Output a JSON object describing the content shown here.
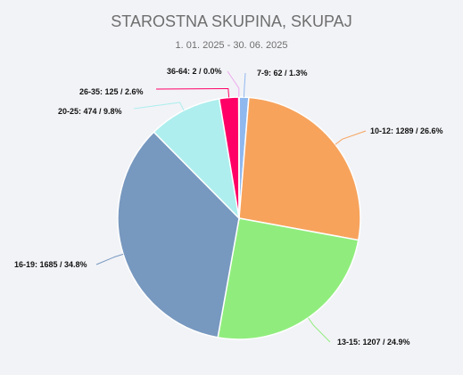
{
  "chart_data": {
    "type": "pie",
    "title": "STAROSTNA SKUPINA, SKUPAJ",
    "subtitle": "1. 01. 2025 - 30. 06. 2025",
    "slices": [
      {
        "label": "7-9",
        "value": 62,
        "percent": "1.3%",
        "text": "7-9: 62 / 1.3%",
        "color": "#8fb8ee"
      },
      {
        "label": "10-12",
        "value": 1289,
        "percent": "26.6%",
        "text": "10-12: 1289 / 26.6%",
        "color": "#f7a35c"
      },
      {
        "label": "13-15",
        "value": 1207,
        "percent": "24.9%",
        "text": "13-15: 1207 / 24.9%",
        "color": "#90ed7d"
      },
      {
        "label": "16-19",
        "value": 1685,
        "percent": "34.8%",
        "text": "16-19: 1685 / 34.8%",
        "color": "#7798bf"
      },
      {
        "label": "20-25",
        "value": 474,
        "percent": "9.8%",
        "text": "20-25: 474 / 9.8%",
        "color": "#aeeeee"
      },
      {
        "label": "26-35",
        "value": 125,
        "percent": "2.6%",
        "text": "26-35: 125 / 2.6%",
        "color": "#ff0066"
      },
      {
        "label": "36-64",
        "value": 2,
        "percent": "0.0%",
        "text": "36-64: 2 / 0.0%",
        "color": "#eeaaee"
      }
    ]
  }
}
